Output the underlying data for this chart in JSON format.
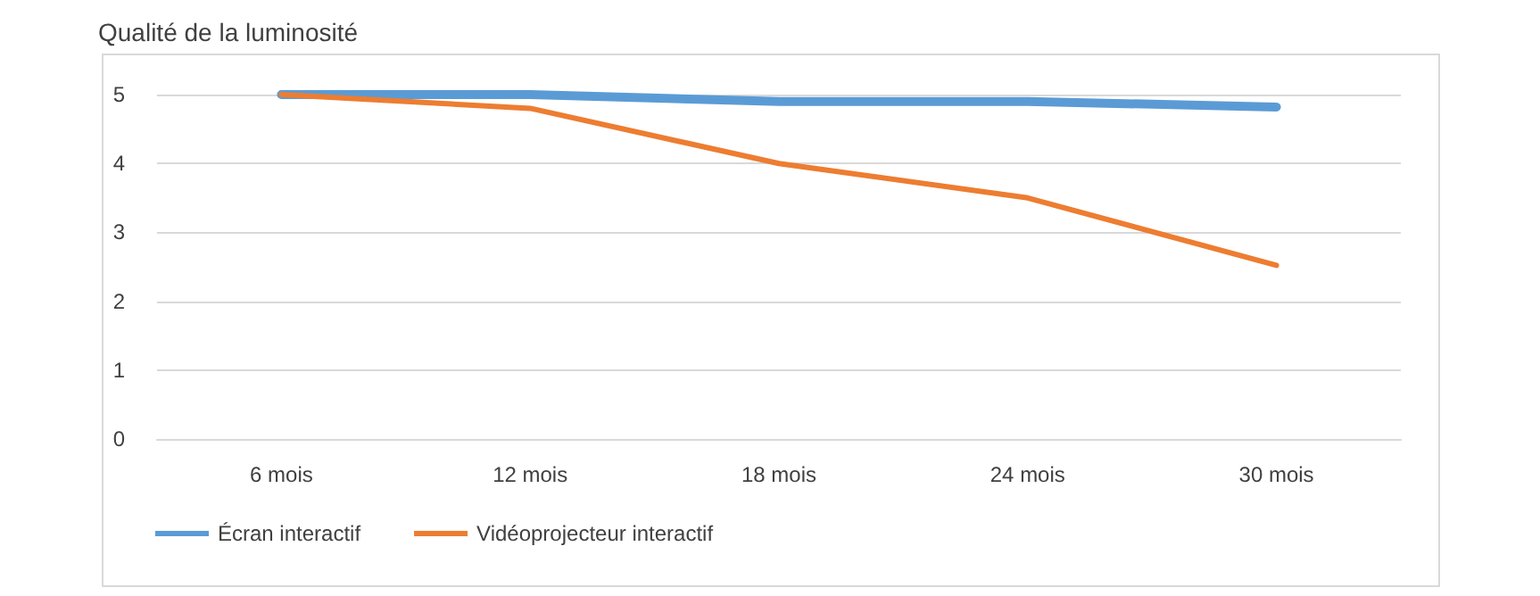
{
  "chart_data": {
    "type": "line",
    "title": "Qualité de la luminosité",
    "categories": [
      "6 mois",
      "12 mois",
      "18 mois",
      "24 mois",
      "30 mois"
    ],
    "series": [
      {
        "name": "Écran interactif",
        "color": "#5b9bd5",
        "values": [
          5,
          5,
          4.9,
          4.9,
          4.82
        ]
      },
      {
        "name": "Vidéoprojecteur interactif",
        "color": "#ed7d31",
        "values": [
          5,
          4.8,
          4.0,
          3.5,
          2.52
        ]
      }
    ],
    "ylim": [
      0,
      5
    ],
    "yticks": [
      0,
      1,
      2,
      3,
      4,
      5
    ],
    "grid": "y",
    "legend": "bottom left",
    "marker": "none",
    "line_style": "solid"
  }
}
